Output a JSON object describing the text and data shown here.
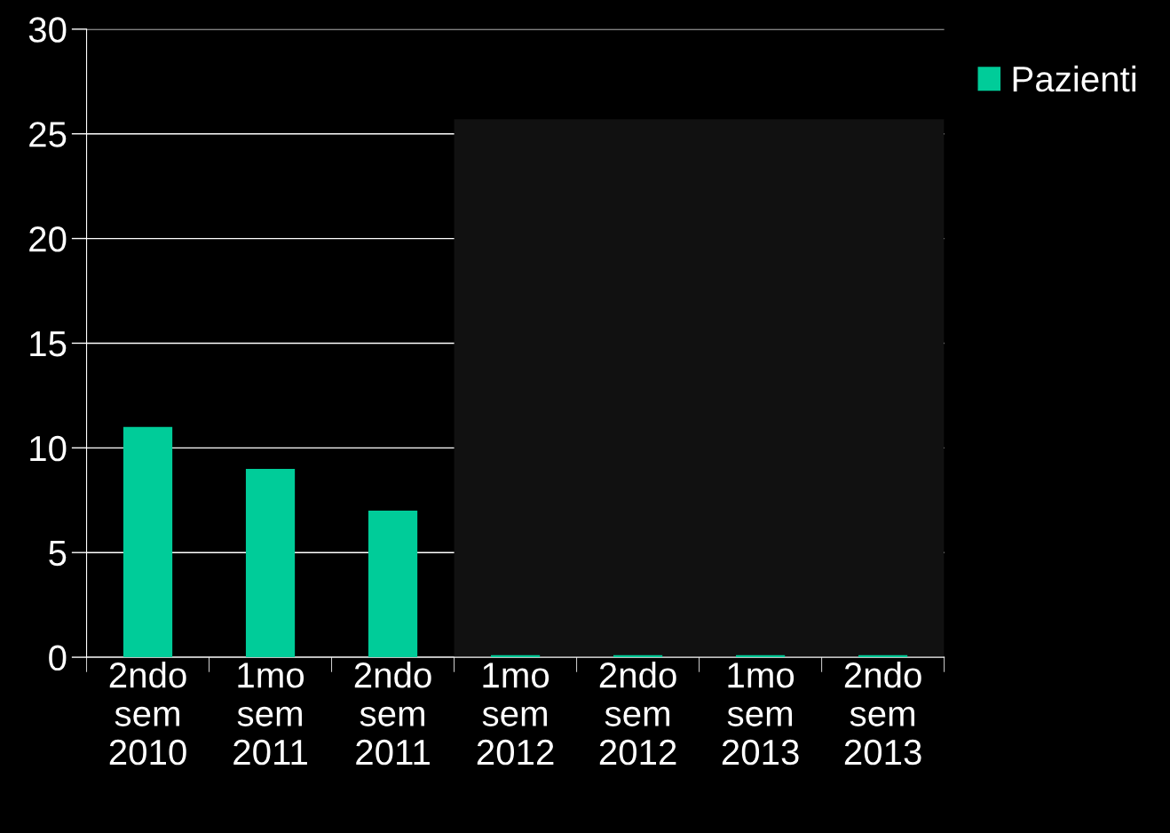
{
  "chart_data": {
    "type": "bar",
    "categories": [
      "2ndo\nsem\n2010",
      "1mo\nsem\n2011",
      "2ndo\nsem\n2011",
      "1mo\nsem\n2012",
      "2ndo\nsem\n2012",
      "1mo\nsem\n2013",
      "2ndo\nsem\n2013"
    ],
    "series": [
      {
        "name": "Pazienti",
        "color": "#00cc99",
        "values": [
          11,
          9,
          7,
          0.1,
          0.1,
          0.1,
          0.1
        ]
      }
    ],
    "ylim": [
      0,
      30
    ],
    "yticks": [
      0,
      5,
      10,
      15,
      20,
      25,
      30
    ],
    "grid": "y",
    "legend": "top right"
  }
}
